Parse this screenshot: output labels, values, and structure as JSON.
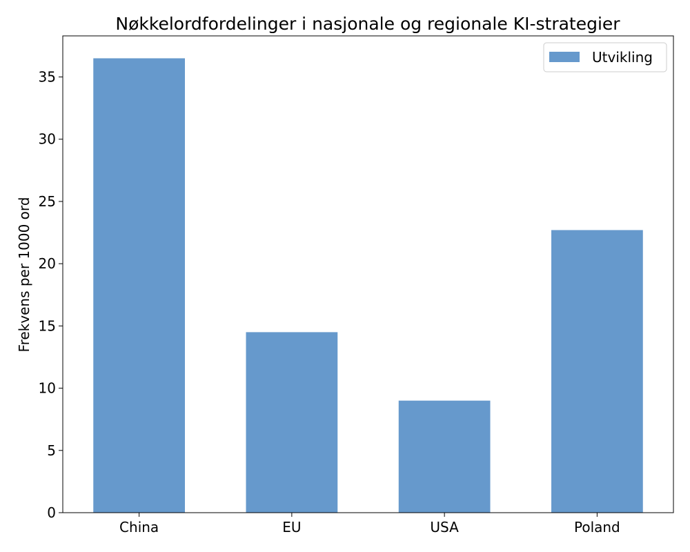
{
  "chart_data": {
    "type": "bar",
    "title": "Nøkkelordfordelinger i nasjonale og regionale KI-strategier",
    "xlabel": "",
    "ylabel": "Frekvens per 1000 ord",
    "categories": [
      "China",
      "EU",
      "USA",
      "Poland"
    ],
    "series": [
      {
        "name": "Utvikling",
        "values": [
          36.5,
          14.5,
          9.0,
          22.7
        ],
        "color": "#6699cc"
      }
    ],
    "ylim": [
      0,
      38.3
    ],
    "yticks": [
      0,
      5,
      10,
      15,
      20,
      25,
      30,
      35
    ],
    "grid": false,
    "legend_position": "top-right"
  }
}
